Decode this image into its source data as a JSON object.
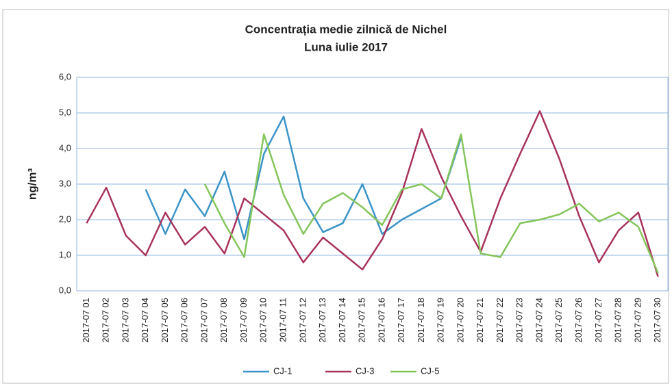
{
  "chart_data": {
    "type": "line",
    "title": "Concentrația medie zilnică de Nichel",
    "subtitle": "Luna iulie 2017",
    "y_label": "ng/m³",
    "categories": [
      "2017-07 01",
      "2017-07 02",
      "2017-07 03",
      "2017-07 04",
      "2017-07 05",
      "2017-07 06",
      "2017-07 07",
      "2017-07 08",
      "2017-07 09",
      "2017-07 10",
      "2017-07 11",
      "2017-07 12",
      "2017-07 13",
      "2017-07 14",
      "2017-07 15",
      "2017-07 16",
      "2017-07 17",
      "2017-07 18",
      "2017-07 19",
      "2017-07 20",
      "2017-07 21",
      "2017-07 22",
      "2017-07 23",
      "2017-07 24",
      "2017-07 25",
      "2017-07 26",
      "2017-07 27",
      "2017-07 28",
      "2017-07 29",
      "2017-07 30"
    ],
    "series": [
      {
        "name": "CJ-1",
        "color": "#3a93c8",
        "values": [
          null,
          null,
          null,
          2.85,
          1.6,
          2.85,
          2.1,
          3.35,
          1.45,
          3.85,
          4.9,
          2.6,
          1.65,
          1.9,
          3.0,
          1.6,
          2.0,
          2.3,
          2.6,
          4.3,
          null,
          null,
          null,
          null,
          null,
          null,
          null,
          null,
          null,
          null
        ]
      },
      {
        "name": "CJ-3",
        "color": "#a8325c",
        "values": [
          1.9,
          2.9,
          1.55,
          1.0,
          2.2,
          1.3,
          1.8,
          1.05,
          2.6,
          2.15,
          1.7,
          0.8,
          1.5,
          1.05,
          0.6,
          1.45,
          2.75,
          4.55,
          3.2,
          2.1,
          1.1,
          2.6,
          3.85,
          5.05,
          3.7,
          2.1,
          0.8,
          1.7,
          2.2,
          0.4
        ]
      },
      {
        "name": "CJ-5",
        "color": "#84c55a",
        "values": [
          null,
          null,
          null,
          null,
          null,
          null,
          3.0,
          1.9,
          0.95,
          4.4,
          2.7,
          1.6,
          2.45,
          2.75,
          2.35,
          1.85,
          2.85,
          3.0,
          2.6,
          4.4,
          1.05,
          0.95,
          1.9,
          2.0,
          2.15,
          2.45,
          1.95,
          2.2,
          1.8,
          0.5
        ]
      }
    ],
    "ylim": [
      0,
      6
    ],
    "yticks": [
      {
        "value": 0,
        "label": "0,0"
      },
      {
        "value": 1,
        "label": "1,0"
      },
      {
        "value": 2,
        "label": "2,0"
      },
      {
        "value": 3,
        "label": "3,0"
      },
      {
        "value": 4,
        "label": "4,0"
      },
      {
        "value": 5,
        "label": "5,0"
      },
      {
        "value": 6,
        "label": "6,0"
      }
    ],
    "grid": true,
    "legend": "bottom"
  }
}
